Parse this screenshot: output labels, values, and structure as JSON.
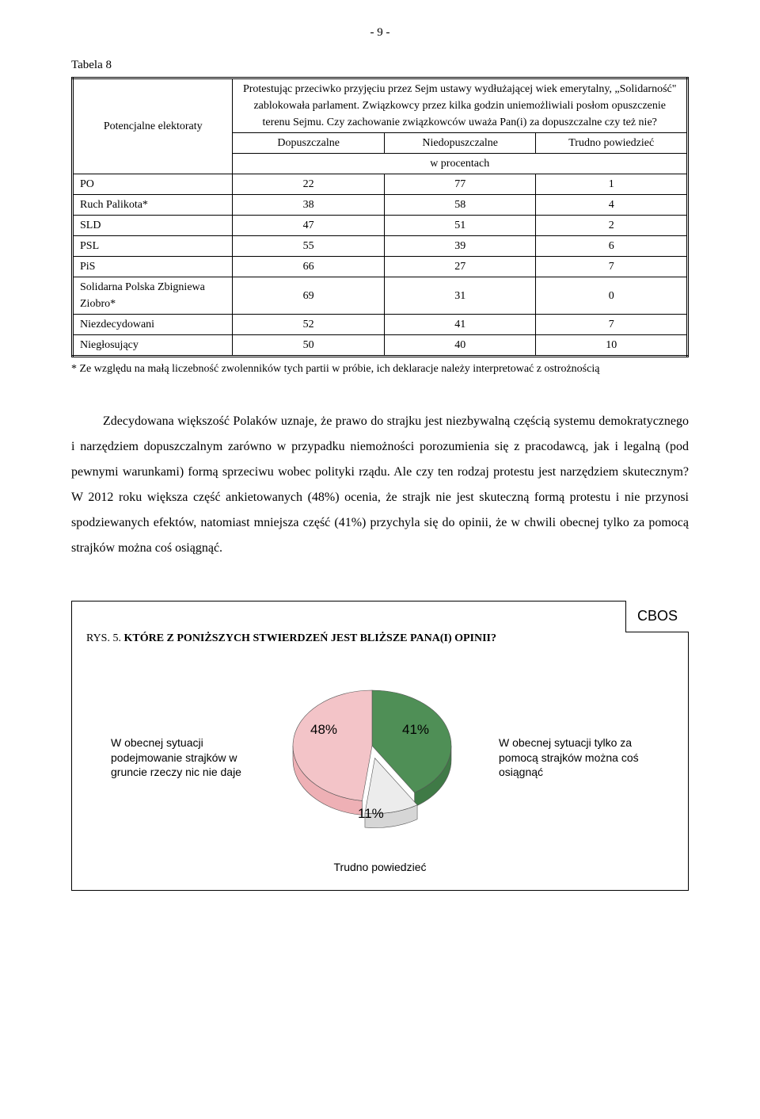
{
  "page_number": "- 9 -",
  "table": {
    "caption": "Tabela 8",
    "header_left": "Potencjalne elektoraty",
    "header_right_main": "Protestując przeciwko przyjęciu przez Sejm ustawy wydłużającej wiek emerytalny, „Solidarność\" zablokowała parlament. Związkowcy przez kilka godzin uniemożliwiali posłom opuszczenie terenu Sejmu. Czy zachowanie związkowców uważa Pan(i) za dopuszczalne czy też nie?",
    "col1": "Dopuszczalne",
    "col2": "Niedopuszczalne",
    "col3": "Trudno powiedzieć",
    "units": "w procentach",
    "rows": [
      {
        "label": "PO",
        "v": [
          22,
          77,
          1
        ]
      },
      {
        "label": "Ruch Palikota*",
        "v": [
          38,
          58,
          4
        ]
      },
      {
        "label": "SLD",
        "v": [
          47,
          51,
          2
        ]
      },
      {
        "label": "PSL",
        "v": [
          55,
          39,
          6
        ]
      },
      {
        "label": "PiS",
        "v": [
          66,
          27,
          7
        ]
      },
      {
        "label": "Solidarna Polska Zbigniewa Ziobro*",
        "v": [
          69,
          31,
          0
        ]
      },
      {
        "label": "Niezdecydowani",
        "v": [
          52,
          41,
          7
        ]
      },
      {
        "label": "Niegłosujący",
        "v": [
          50,
          40,
          10
        ]
      }
    ],
    "footnote": "* Ze względu na małą liczebność zwolenników tych partii w próbie, ich deklaracje należy interpretować z ostrożnością"
  },
  "paragraph": "Zdecydowana większość Polaków uznaje, że prawo do strajku jest niezbywalną częścią systemu demokratycznego i narzędziem dopuszczalnym zarówno w przypadku niemożności porozumienia się z pracodawcą, jak i legalną (pod pewnymi warunkami) formą sprzeciwu wobec polityki rządu. Ale czy ten rodzaj protestu jest narzędziem skutecznym? W 2012 roku większa część ankietowanych (48%) ocenia, że strajk nie jest skuteczną formą protestu i nie przynosi spodziewanych efektów, natomiast mniejsza część (41%) przychyla się do opinii, że w chwili obecnej tylko za pomocą strajków można coś osiągnąć.",
  "chart": {
    "badge": "CBOS",
    "title_prefix": "RYS. 5. ",
    "title_bold": "KTÓRE Z PONIŻSZYCH STWIERDZEŃ JEST BLIŻSZE PANA(I) OPINII?",
    "left_label": "W obecnej sytuacji podejmowanie strajków w gruncie rzeczy nic nie daje",
    "right_label": "W obecnej sytuacji tylko za pomocą strajków można coś osiągnąć",
    "bottom_label": "Trudno powiedzieć",
    "slices": {
      "left": {
        "value": 48,
        "text": "48%",
        "color": "#eeb0b5",
        "color_top": "#f3c4c8"
      },
      "right": {
        "value": 41,
        "text": "41%",
        "color": "#3f7a46",
        "color_top": "#4f8f56"
      },
      "bottom": {
        "value": 11,
        "text": "11%",
        "color": "#d6d6d6",
        "color_top": "#ececec"
      }
    }
  }
}
